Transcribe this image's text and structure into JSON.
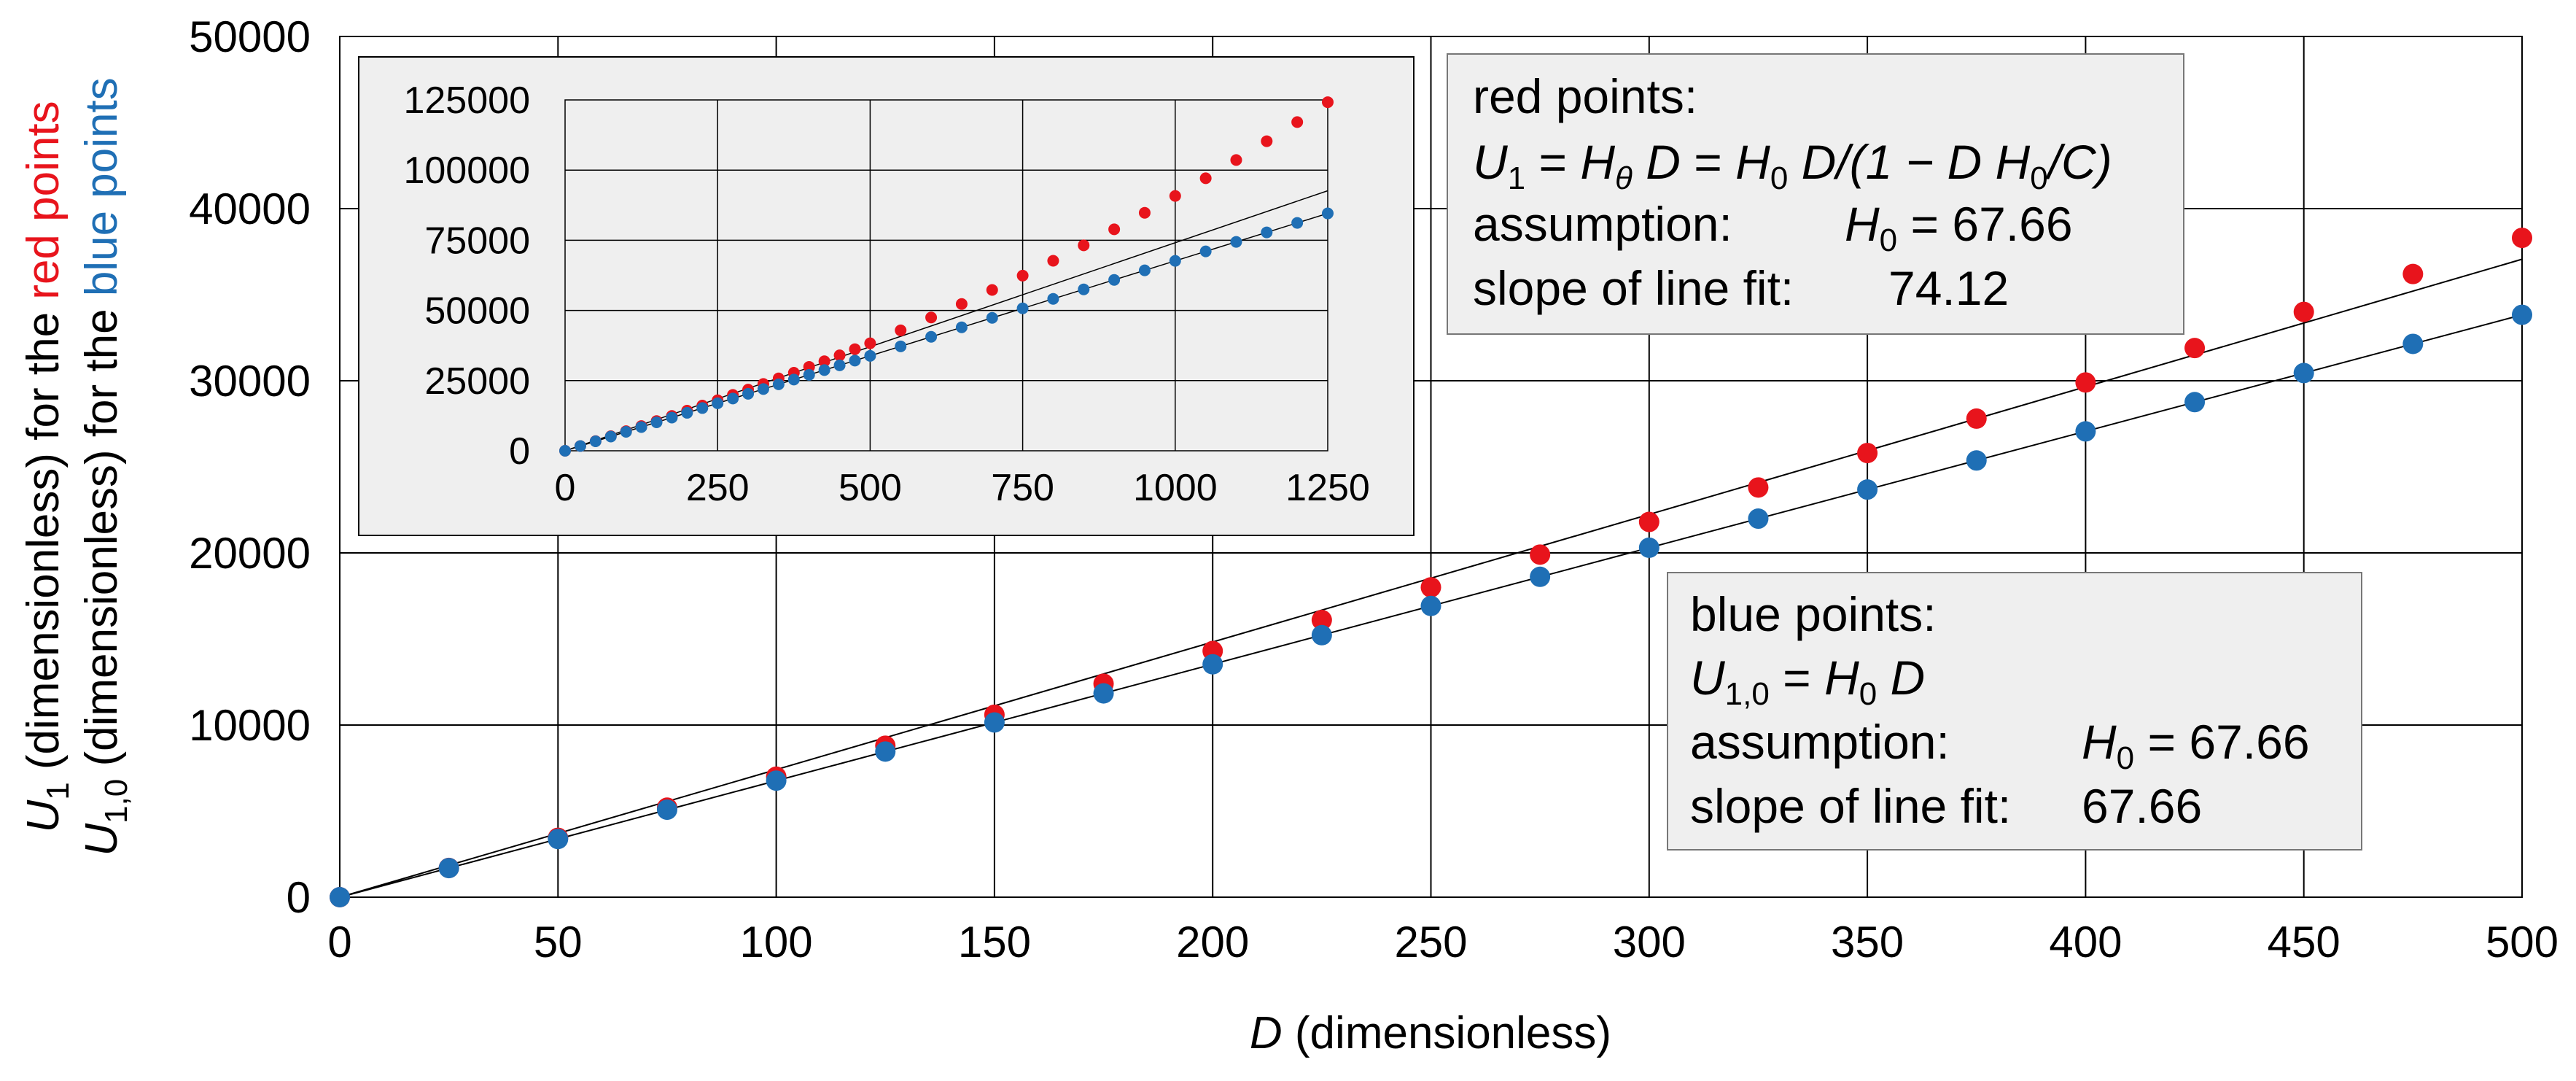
{
  "chart_data": [
    {
      "type": "scatter",
      "name": "main",
      "xlabel": {
        "var": "D",
        "rest": " (dimensionless)"
      },
      "ylabel_red": {
        "var": "U",
        "sub": "1",
        "rest": " (dimensionless) for the ",
        "colored": "red points"
      },
      "ylabel_blue": {
        "var": "U",
        "sub": "1,0",
        "rest": " (dimensionless) for the ",
        "colored": "blue points"
      },
      "xlim": [
        0,
        500
      ],
      "ylim": [
        0,
        50000
      ],
      "x_ticks": [
        "0",
        "50",
        "100",
        "150",
        "200",
        "250",
        "300",
        "350",
        "400",
        "450",
        "500"
      ],
      "y_ticks": [
        "0",
        "10000",
        "20000",
        "30000",
        "40000",
        "50000"
      ],
      "grid": true,
      "series": [
        {
          "color": "#e8141c",
          "x": [
            0,
            25,
            50,
            75,
            100,
            125,
            150,
            175,
            200,
            225,
            250,
            275,
            300,
            325,
            350,
            375,
            400,
            425,
            450,
            475,
            500
          ],
          "y": [
            0,
            1700,
            3450,
            5200,
            7000,
            8800,
            10600,
            12400,
            14300,
            16100,
            18000,
            19900,
            21800,
            23800,
            25800,
            27800,
            29900,
            31900,
            34000,
            36200,
            38300
          ]
        },
        {
          "color": "#1f6fb5",
          "x": [
            0,
            25,
            50,
            75,
            100,
            125,
            150,
            175,
            200,
            225,
            250,
            275,
            300,
            325,
            350,
            375,
            400,
            425,
            450,
            475,
            500
          ],
          "y": [
            0,
            1690,
            3380,
            5080,
            6770,
            8460,
            10150,
            11840,
            13530,
            15220,
            16920,
            18610,
            20300,
            21990,
            23680,
            25370,
            27060,
            28760,
            30450,
            32140,
            33830
          ]
        }
      ],
      "fit_lines": [
        {
          "slope": 74.12,
          "color": "#000000"
        },
        {
          "slope": 67.66,
          "color": "#000000"
        }
      ]
    },
    {
      "type": "scatter",
      "name": "inset",
      "xlim": [
        0,
        1250
      ],
      "ylim": [
        0,
        125000
      ],
      "x_ticks": [
        "0",
        "250",
        "500",
        "750",
        "1000",
        "1250"
      ],
      "y_ticks": [
        "0",
        "25000",
        "50000",
        "75000",
        "100000",
        "125000"
      ],
      "grid": true,
      "series": [
        {
          "color": "#e8141c",
          "x": [
            0,
            25,
            50,
            75,
            100,
            125,
            150,
            175,
            200,
            225,
            250,
            275,
            300,
            325,
            350,
            375,
            400,
            425,
            450,
            475,
            500,
            550,
            600,
            650,
            700,
            750,
            800,
            850,
            900,
            950,
            1000,
            1050,
            1100,
            1150,
            1200,
            1250
          ],
          "y": [
            0,
            1700,
            3450,
            5200,
            7000,
            8800,
            10600,
            12400,
            14300,
            16100,
            18000,
            19900,
            21800,
            23800,
            25800,
            27800,
            29900,
            31900,
            34000,
            36200,
            38300,
            42900,
            47500,
            52300,
            57300,
            62400,
            67700,
            73200,
            78900,
            84800,
            90800,
            97100,
            103600,
            110300,
            117100,
            124200
          ]
        },
        {
          "color": "#1f6fb5",
          "x": [
            0,
            25,
            50,
            75,
            100,
            125,
            150,
            175,
            200,
            225,
            250,
            275,
            300,
            325,
            350,
            375,
            400,
            425,
            450,
            475,
            500,
            550,
            600,
            650,
            700,
            750,
            800,
            850,
            900,
            950,
            1000,
            1050,
            1100,
            1150,
            1200,
            1250
          ],
          "y": [
            0,
            1690,
            3380,
            5080,
            6770,
            8460,
            10150,
            11840,
            13530,
            15220,
            16920,
            18610,
            20300,
            21990,
            23680,
            25370,
            27060,
            28760,
            30450,
            32140,
            33830,
            37210,
            40600,
            43980,
            47360,
            50750,
            54130,
            57510,
            60890,
            64280,
            67660,
            71040,
            74430,
            77810,
            81190,
            84580
          ]
        }
      ],
      "fit_lines": [
        {
          "slope": 74.12,
          "color": "#000000"
        },
        {
          "slope": 67.66,
          "color": "#000000"
        }
      ]
    }
  ],
  "red_box": {
    "title": "red points:",
    "formula": {
      "lhs_var": "U",
      "lhs_sub": "1",
      "eq1": " = ",
      "h_var": "H",
      "h_sub": "θ",
      "d": " D",
      "eq2": " = ",
      "h0_var": "H",
      "h0_sub": "0",
      "rhs": " D/(1 − D H",
      "rhs_sub": "0",
      "rhs_end": "/C)"
    },
    "assumption_label": "assumption:",
    "assumption_var": "H",
    "assumption_sub": "0",
    "assumption_value": " = 67.66",
    "slope_label": "slope of line fit:",
    "slope_value": "74.12"
  },
  "blue_box": {
    "title": "blue points:",
    "formula": {
      "lhs_var": "U",
      "lhs_sub": "1,0",
      "eq": " = ",
      "h_var": "H",
      "h_sub": "0",
      "d": " D"
    },
    "assumption_label": "assumption:",
    "assumption_var": "H",
    "assumption_sub": "0",
    "assumption_value": " = 67.66",
    "slope_label": "slope of line fit:",
    "slope_value": "67.66"
  },
  "colors": {
    "red": "#e8141c",
    "blue": "#1f6fb5",
    "box_bg": "#efefef",
    "grid": "#000000"
  }
}
